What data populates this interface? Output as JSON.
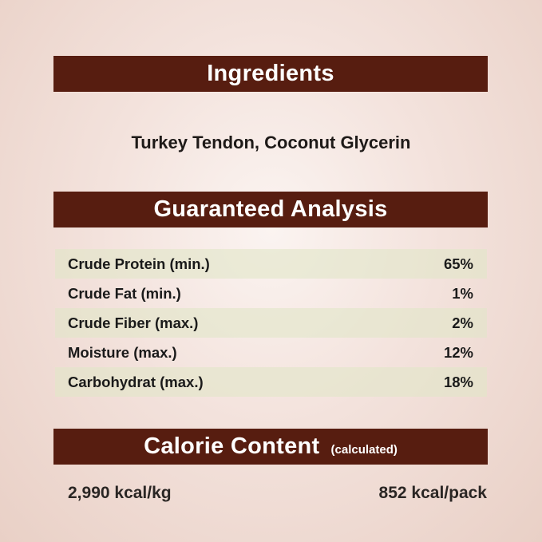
{
  "ingredients": {
    "title": "Ingredients",
    "text": "Turkey Tendon, Coconut Glycerin"
  },
  "analysis": {
    "title": "Guaranteed Analysis",
    "rows": [
      {
        "label": "Crude Protein (min.)",
        "value": "65%"
      },
      {
        "label": "Crude Fat (min.)",
        "value": "1%"
      },
      {
        "label": "Crude Fiber (max.)",
        "value": "2%"
      },
      {
        "label": "Moisture (max.)",
        "value": "12%"
      },
      {
        "label": "Carbohydrat (max.)",
        "value": "18%"
      }
    ]
  },
  "calorie": {
    "title": "Calorie Content",
    "subtitle": "(calculated)",
    "per_kg": "2,990 kcal/kg",
    "per_pack": "852 kcal/pack"
  },
  "colors": {
    "header_bar": "#571d10",
    "row_shade": "#e1e6c8"
  }
}
